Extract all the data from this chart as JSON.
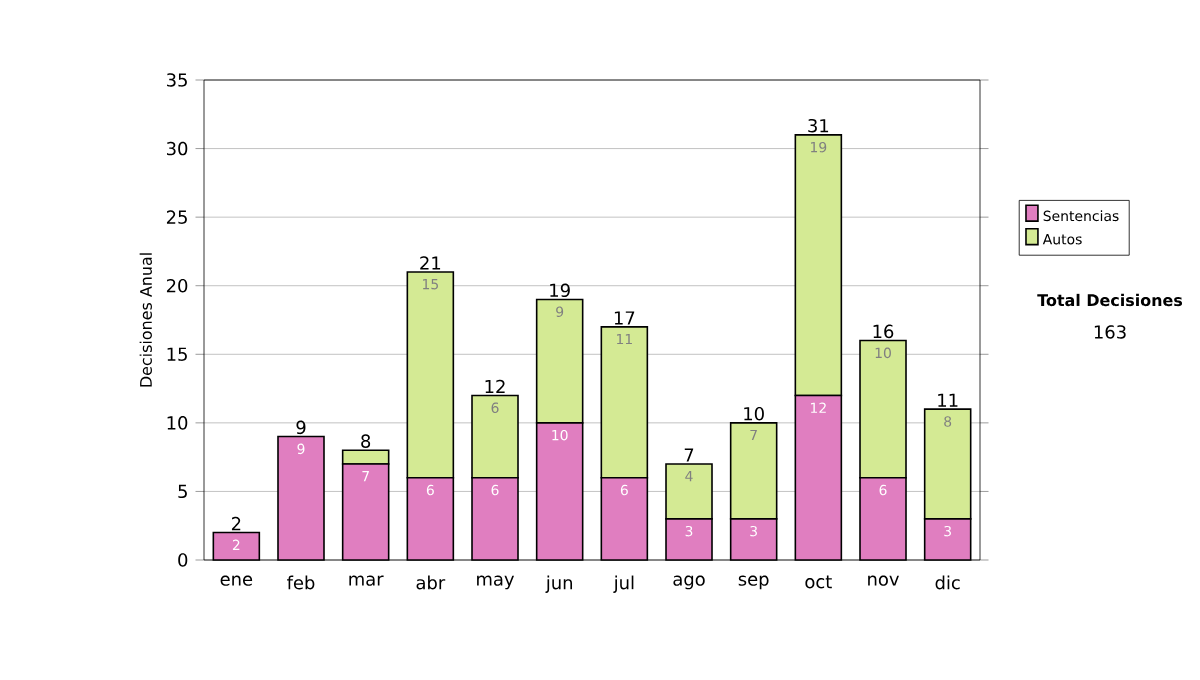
{
  "chart_data": {
    "type": "bar",
    "stacked": true,
    "ylabel": "Decisiones Anual",
    "categories": [
      "ene",
      "feb",
      "mar",
      "abr",
      "may",
      "jun",
      "jul",
      "ago",
      "sep",
      "oct",
      "nov",
      "dic"
    ],
    "series": [
      {
        "name": "Sentencias",
        "color": "#e07ec0",
        "values": [
          2,
          9,
          7,
          6,
          6,
          10,
          6,
          3,
          3,
          12,
          6,
          3
        ],
        "value_labels": [
          "2",
          "9",
          "7",
          "6",
          "6",
          "10",
          "6",
          "3",
          "3",
          "12",
          "6",
          "3"
        ]
      },
      {
        "name": "Autos",
        "color": "#d4ea94",
        "values": [
          0,
          0,
          1,
          15,
          6,
          9,
          11,
          4,
          7,
          19,
          10,
          8
        ],
        "value_labels": [
          null,
          null,
          null,
          "15",
          "6",
          "9",
          "11",
          "4",
          "7",
          "19",
          "10",
          "8"
        ]
      }
    ],
    "totals": [
      "2",
      "9",
      "8",
      "21",
      "12",
      "19",
      "17",
      "7",
      "10",
      "31",
      "16",
      "11"
    ],
    "ylim": [
      0,
      35
    ],
    "yticks": [
      0,
      5,
      10,
      15,
      20,
      25,
      30,
      35
    ],
    "grid": "y",
    "legend": "right",
    "annotations": [
      "Total Decisiones",
      "163"
    ]
  }
}
